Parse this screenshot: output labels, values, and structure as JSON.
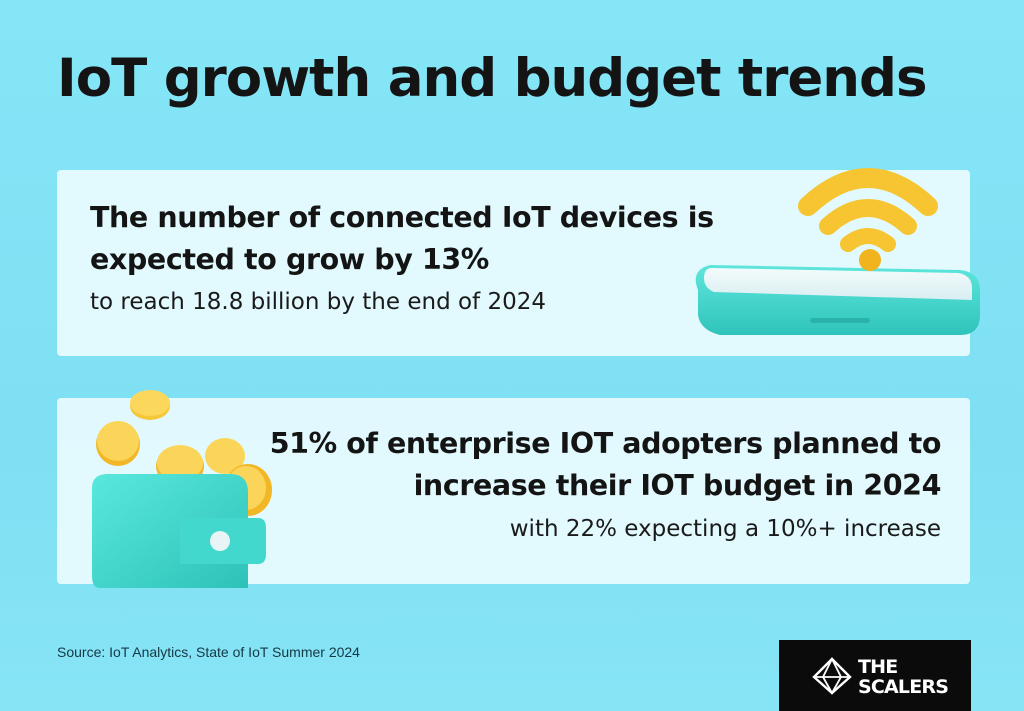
{
  "title": "IoT growth and budget trends",
  "card_devices": {
    "headline": "The number of connected IoT devices is expected to grow by 13%",
    "detail": "to reach 18.8 billion by the end of 2024"
  },
  "card_budget": {
    "headline": "51% of enterprise IOT adopters planned to increase their IOT budget in 2024",
    "detail": "with 22% expecting a 10%+ increase"
  },
  "source": "Source: IoT Analytics, State of IoT Summer 2024",
  "logo": {
    "line1": "THE",
    "line2": "SCALERS"
  },
  "icons": {
    "card_devices": "phone-wifi-icon",
    "card_budget": "wallet-coins-icon",
    "logo": "scalers-diamond-icon"
  },
  "colors": {
    "background": "#84e6f7",
    "card": "#ecfcff",
    "accent_teal": "#49ddd2",
    "accent_gold": "#f6c531",
    "text": "#141414",
    "logo_bg": "#0b0b0b"
  }
}
